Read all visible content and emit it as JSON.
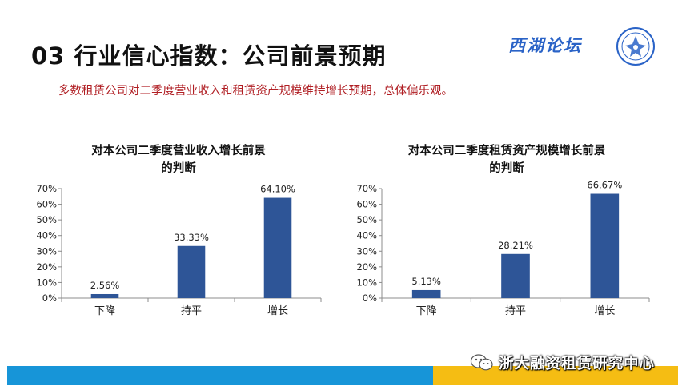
{
  "slide": {
    "title": "03 行业信心指数：公司前景预期",
    "subtitle": "多数租赁公司对二季度营业收入和租赁资产规模维持增长预期，总体偏乐观。",
    "logo_text": "西湖论坛",
    "footer_brand": "浙大融资租赁研究中心",
    "colors": {
      "title": "#111111",
      "subtitle": "#b01f24",
      "bar": "#2e5597",
      "bottom_bar_blue": "#1795d8",
      "bottom_bar_yellow": "#f5bd13",
      "logo": "#2a63c7"
    },
    "icons": {
      "logo_emblem": "seal-emblem-icon",
      "footer": "wechat-icon"
    }
  },
  "chart_data": [
    {
      "type": "bar",
      "title_line1": "对本公司二季度营业收入增长前景",
      "title_line2": "的判断",
      "categories": [
        "下降",
        "持平",
        "增长"
      ],
      "values": [
        2.56,
        33.33,
        64.1
      ],
      "value_labels": [
        "2.56%",
        "33.33%",
        "64.10%"
      ],
      "ylim": [
        0,
        70
      ],
      "yticks": [
        0,
        10,
        20,
        30,
        40,
        50,
        60,
        70
      ],
      "ytick_labels": [
        "0%",
        "10%",
        "20%",
        "30%",
        "40%",
        "50%",
        "60%",
        "70%"
      ],
      "grid": false,
      "legend": "none"
    },
    {
      "type": "bar",
      "title_line1": "对本公司二季度租赁资产规模增长前景",
      "title_line2": "的判断",
      "categories": [
        "下降",
        "持平",
        "增长"
      ],
      "values": [
        5.13,
        28.21,
        66.67
      ],
      "value_labels": [
        "5.13%",
        "28.21%",
        "66.67%"
      ],
      "ylim": [
        0,
        70
      ],
      "yticks": [
        0,
        10,
        20,
        30,
        40,
        50,
        60,
        70
      ],
      "ytick_labels": [
        "0%",
        "10%",
        "20%",
        "30%",
        "40%",
        "50%",
        "60%",
        "70%"
      ],
      "grid": false,
      "legend": "none"
    }
  ]
}
